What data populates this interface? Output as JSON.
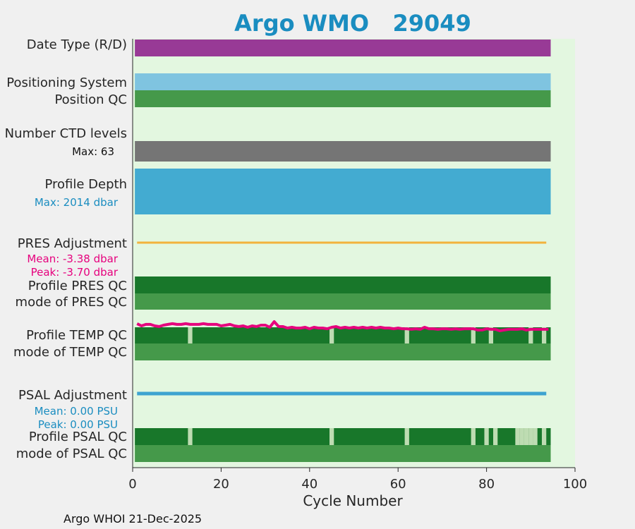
{
  "colors": {
    "page_bg": "#f0f0f0",
    "plot_bg": "#e3f7e0",
    "title": "#1a8dc0",
    "date_type": "#983a96",
    "positioning": "#7fc4e0",
    "qc_mode": "#45994a",
    "qc_good": "#18772a",
    "qc_gap": "#bedcb2",
    "ctd": "#757575",
    "depth": "#43abd1",
    "pres_adj": "#f2b33d",
    "pres_text": "#e6007d",
    "temp_line": "#e6007d",
    "psal_adj": "#3ea3d0",
    "psal_text": "#1a8dc0"
  },
  "chart_data": {
    "type": "bar",
    "title": "Argo WMO   29049",
    "xlabel": "Cycle Number",
    "xlim": [
      0,
      100
    ],
    "xticks": [
      0,
      20,
      40,
      60,
      80,
      100
    ],
    "cycle_range": [
      1,
      94
    ],
    "row_labels": {
      "date_type": "Date Type (R/D)",
      "positioning": "Positioning System",
      "position_qc": "Position QC",
      "ctd_levels": "Number CTD levels",
      "ctd_max": "Max: 63",
      "profile_depth": "Profile Depth",
      "depth_max": "Max: 2014 dbar",
      "pres_adjustment": "PRES Adjustment",
      "pres_mean": "Mean: -3.38 dbar",
      "pres_peak": "Peak: -3.70 dbar",
      "profile_pres_qc": "Profile PRES QC",
      "mode_pres_qc": "mode of PRES QC",
      "profile_temp_qc": "Profile TEMP QC",
      "mode_temp_qc": "mode of TEMP QC",
      "psal_adjustment": "PSAL Adjustment",
      "psal_mean": "Mean: 0.00 PSU",
      "psal_peak": "Peak: 0.00 PSU",
      "profile_psal_qc": "Profile PSAL QC",
      "mode_psal_qc": "mode of PSAL QC"
    },
    "max_ctd_levels": 63,
    "max_profile_depth_dbar": 2014,
    "pres_adjustment": {
      "mean_dbar": -3.38,
      "peak_dbar": -3.7
    },
    "psal_adjustment": {
      "mean_psu": 0.0,
      "peak_psu": 0.0
    },
    "temp_qc_gap_cycles": [
      13,
      45,
      62,
      77,
      81,
      90,
      93
    ],
    "psal_qc_gap_cycles": [
      13,
      45,
      62,
      77,
      80,
      82,
      87,
      88,
      89,
      90,
      91,
      93
    ],
    "temp_adjustment_trace": {
      "cycles": [
        1,
        2,
        3,
        4,
        5,
        6,
        7,
        8,
        9,
        10,
        11,
        12,
        13,
        14,
        15,
        16,
        17,
        18,
        19,
        20,
        21,
        22,
        23,
        24,
        25,
        26,
        27,
        28,
        29,
        30,
        31,
        32,
        33,
        34,
        35,
        36,
        37,
        38,
        39,
        40,
        41,
        42,
        43,
        44,
        45,
        46,
        47,
        48,
        49,
        50,
        51,
        52,
        53,
        54,
        55,
        56,
        57,
        58,
        59,
        60,
        61,
        62,
        63,
        64,
        65,
        66,
        67,
        68,
        69,
        70,
        71,
        72,
        73,
        74,
        75,
        76,
        77,
        78,
        79,
        80,
        81,
        82,
        83,
        84,
        85,
        86,
        87,
        88,
        89,
        90,
        91,
        92,
        93,
        94
      ],
      "level": [
        0.71,
        0.53,
        0.65,
        0.65,
        0.53,
        0.47,
        0.59,
        0.65,
        0.71,
        0.65,
        0.65,
        0.71,
        0.65,
        0.65,
        0.65,
        0.71,
        0.65,
        0.65,
        0.65,
        0.53,
        0.59,
        0.65,
        0.53,
        0.47,
        0.53,
        0.41,
        0.53,
        0.47,
        0.59,
        0.59,
        0.41,
        0.88,
        0.47,
        0.47,
        0.35,
        0.41,
        0.35,
        0.35,
        0.41,
        0.29,
        0.41,
        0.35,
        0.35,
        0.29,
        0.41,
        0.47,
        0.35,
        0.41,
        0.35,
        0.41,
        0.35,
        0.41,
        0.35,
        0.41,
        0.35,
        0.41,
        0.35,
        0.35,
        0.29,
        0.35,
        0.29,
        0.29,
        0.24,
        0.29,
        0.24,
        0.41,
        0.29,
        0.29,
        0.24,
        0.29,
        0.29,
        0.24,
        0.29,
        0.24,
        0.29,
        0.29,
        0.29,
        0.18,
        0.18,
        0.29,
        0.24,
        0.24,
        0.12,
        0.18,
        0.24,
        0.24,
        0.24,
        0.29,
        0.18,
        0.24,
        0.24,
        0.24,
        0.24,
        0.24
      ]
    }
  },
  "footer": "Argo WHOI 21-Dec-2025"
}
